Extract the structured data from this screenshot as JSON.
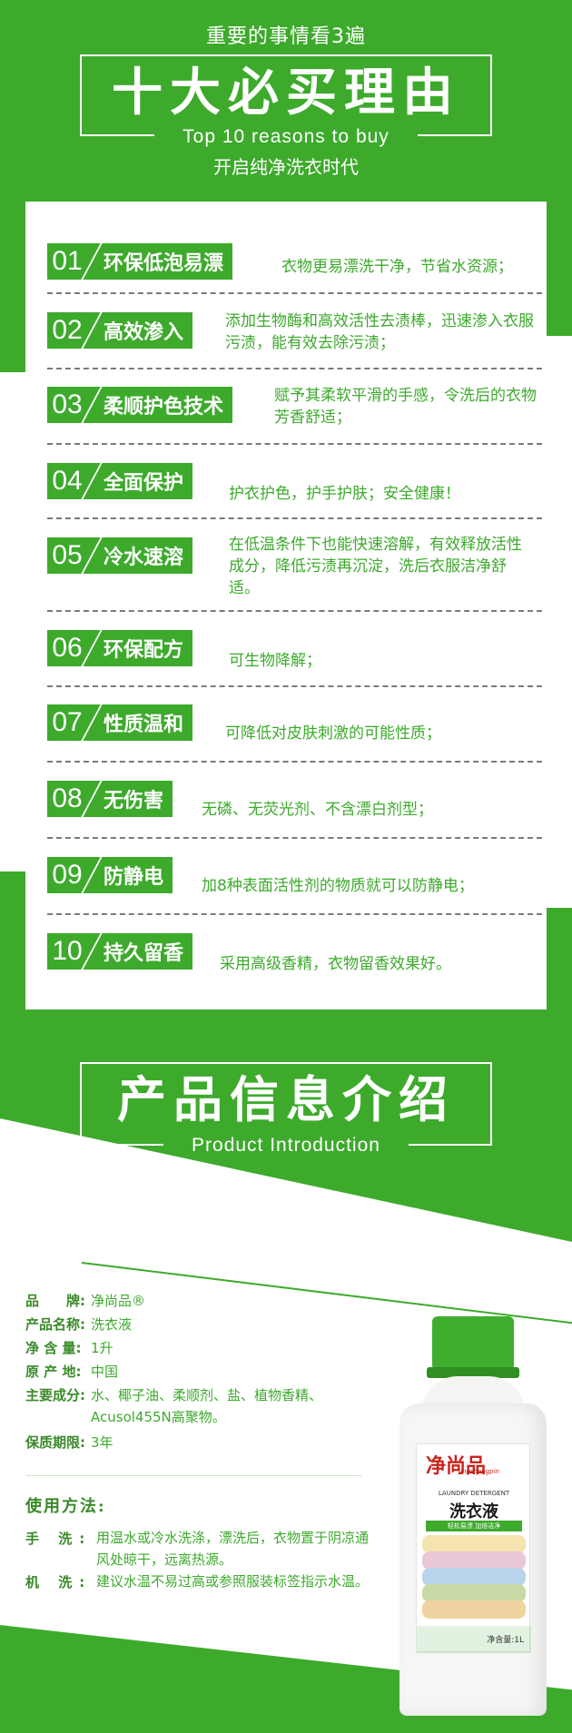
{
  "header": {
    "small_title": "重要的事情看3遍",
    "big_title": "十大必买理由",
    "en_subtitle": "Top 10 reasons to buy",
    "cn_subtitle": "开启纯净洗衣时代"
  },
  "reasons": [
    {
      "num": "01",
      "title": "环保低泡易漂",
      "desc": "衣物更易漂洗干净，节省水资源；"
    },
    {
      "num": "02",
      "title": "高效渗入",
      "desc": "添加生物酶和高效活性去渍棒，迅速渗入衣服污渍，能有效去除污渍；"
    },
    {
      "num": "03",
      "title": "柔顺护色技术",
      "desc": "赋予其柔软平滑的手感，令洗后的衣物芳香舒适；"
    },
    {
      "num": "04",
      "title": "全面保护",
      "desc": "护衣护色，护手护肤；安全健康！"
    },
    {
      "num": "05",
      "title": "冷水速溶",
      "desc": "在低温条件下也能快速溶解，有效释放活性成分，降低污渍再沉淀，洗后衣服洁净舒适。"
    },
    {
      "num": "06",
      "title": "环保配方",
      "desc": "可生物降解；"
    },
    {
      "num": "07",
      "title": "性质温和",
      "desc": "可降低对皮肤刺激的可能性质；"
    },
    {
      "num": "08",
      "title": "无伤害",
      "desc": "无磷、无荧光剂、不含漂白剂型；"
    },
    {
      "num": "09",
      "title": "防静电",
      "desc": "加8种表面活性剂的物质就可以防静电；"
    },
    {
      "num": "10",
      "title": "持久留香",
      "desc": "采用高级香精，衣物留香效果好。"
    }
  ],
  "product_section": {
    "title": "产品信息介绍",
    "en_subtitle": "Product Introduction"
  },
  "product_info": [
    {
      "label": "品　　牌:",
      "value": "净尚品®"
    },
    {
      "label": "产品名称:",
      "value": "洗衣液"
    },
    {
      "label": "净 含 量:",
      "value": "1升"
    },
    {
      "label": "原 产 地:",
      "value": "中国"
    },
    {
      "label": "主要成分:",
      "value": "水、椰子油、柔顺剂、盐、植物香精、"
    },
    {
      "label": "",
      "value": "Acusol455N高聚物。"
    },
    {
      "label": "保质期限:",
      "value": "3年"
    }
  ],
  "usage": {
    "title": "使用方法:",
    "hand_label": "手 洗:",
    "hand_text": "用温水或冷水洗涤，漂洗后，衣物置于阴凉通风处晾干，远离热源。",
    "machine_label": "机 洗:",
    "machine_text": "建议水温不易过高或参照服装标签指示水温。"
  },
  "bottle": {
    "brand": "净尚品",
    "brand_pinyin": "Jingshangpin",
    "en_label": "LAUNDRY DETERGENT",
    "cn_label": "洗衣液",
    "tagline": "轻松易漂 加倍洁净",
    "volume": "净含量:1L"
  },
  "colors": {
    "brand_green": "#3daa2c",
    "dark_green": "#3a8a2a",
    "white": "#ffffff"
  }
}
